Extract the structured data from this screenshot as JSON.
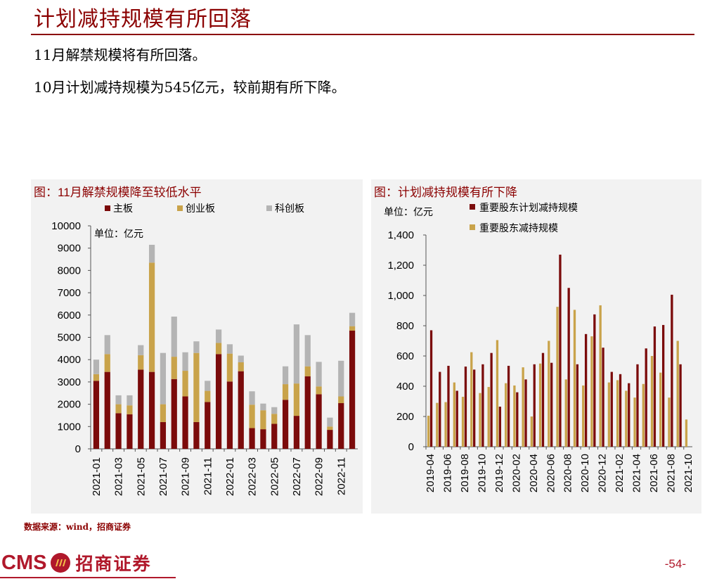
{
  "header": {
    "title": "计划减持规模有所回落",
    "bullets": [
      "11月解禁规模将有所回落。",
      "10月计划减持规模为545亿元，较前期有所下降。"
    ]
  },
  "colors": {
    "main": "#7b0b0b",
    "chinext": "#c9a34a",
    "star": "#b4b4b4",
    "brand": "#b0182b"
  },
  "left_chart": {
    "panel_title": "图：11月解禁规模降至较低水平"
  },
  "right_chart": {
    "panel_title": "图：计划减持规模有所下降"
  },
  "chart_data": [
    {
      "type": "bar",
      "stacked": true,
      "title": "图：11月解禁规模降至较低水平",
      "unit_label": "单位：亿元",
      "ylim": [
        0,
        10000
      ],
      "yticks": [
        "0",
        "1000",
        "2000",
        "3000",
        "4000",
        "5000",
        "6000",
        "7000",
        "8000",
        "9000",
        "10000"
      ],
      "categories": [
        "2021-01",
        "2021-02",
        "2021-03",
        "2021-04",
        "2021-05",
        "2021-06",
        "2021-07",
        "2021-08",
        "2021-09",
        "2021-10",
        "2021-11",
        "2021-12",
        "2022-01",
        "2022-02",
        "2022-03",
        "2022-04",
        "2022-05",
        "2022-06",
        "2022-07",
        "2022-08",
        "2022-09",
        "2022-10",
        "2022-11",
        "2022-12"
      ],
      "x_tick_labels": [
        "2021-01",
        "2021-03",
        "2021-05",
        "2021-07",
        "2021-09",
        "2021-11",
        "2022-01",
        "2022-03",
        "2022-05",
        "2022-07",
        "2022-09",
        "2022-11"
      ],
      "legend": [
        "主板",
        "创业板",
        "科创板"
      ],
      "series": [
        {
          "name": "主板",
          "values": [
            3050,
            3450,
            1600,
            1550,
            3550,
            3450,
            1200,
            3130,
            2350,
            1200,
            2100,
            4250,
            3020,
            3480,
            930,
            880,
            1120,
            2200,
            1480,
            3250,
            2450,
            850,
            2050,
            5300
          ]
        },
        {
          "name": "创业板",
          "values": [
            300,
            800,
            400,
            400,
            650,
            4900,
            800,
            1000,
            1150,
            3100,
            500,
            500,
            1250,
            400,
            1050,
            850,
            450,
            700,
            1450,
            450,
            350,
            150,
            300,
            200
          ]
        },
        {
          "name": "科创板",
          "values": [
            650,
            850,
            400,
            450,
            450,
            800,
            2300,
            1800,
            830,
            520,
            450,
            600,
            420,
            300,
            600,
            300,
            300,
            800,
            2650,
            1400,
            1100,
            400,
            1600,
            600
          ]
        }
      ]
    },
    {
      "type": "bar",
      "stacked": false,
      "title": "图：计划减持规模有所下降",
      "unit_label": "单位：亿元",
      "ylim": [
        0,
        1400
      ],
      "yticks": [
        "0",
        "200",
        "400",
        "600",
        "800",
        "1,000",
        "1,200",
        "1,400"
      ],
      "categories": [
        "2019-04",
        "2019-05",
        "2019-06",
        "2019-07",
        "2019-08",
        "2019-09",
        "2019-10",
        "2019-11",
        "2019-12",
        "2020-01",
        "2020-02",
        "2020-03",
        "2020-04",
        "2020-05",
        "2020-06",
        "2020-07",
        "2020-08",
        "2020-09",
        "2020-10",
        "2020-11",
        "2020-12",
        "2021-01",
        "2021-02",
        "2021-03",
        "2021-04",
        "2021-05",
        "2021-06",
        "2021-07",
        "2021-08",
        "2021-09",
        "2021-10"
      ],
      "x_tick_labels": [
        "2019-04",
        "2019-06",
        "2019-08",
        "2019-10",
        "2019-12",
        "2020-02",
        "2020-04",
        "2020-06",
        "2020-08",
        "2020-10",
        "2020-12",
        "2021-02",
        "2021-04",
        "2021-06",
        "2021-08",
        "2021-10"
      ],
      "legend": [
        "重要股东计划减持规模",
        "重要股东减持规模"
      ],
      "series": [
        {
          "name": "重要股东计划减持规模",
          "values": [
            770,
            495,
            535,
            370,
            530,
            510,
            545,
            620,
            265,
            535,
            360,
            445,
            545,
            620,
            555,
            1270,
            1050,
            545,
            745,
            875,
            655,
            495,
            480,
            420,
            545,
            650,
            795,
            805,
            1005,
            545,
            null
          ]
        },
        {
          "name": "重要股东减持规模",
          "values": [
            205,
            290,
            295,
            425,
            330,
            625,
            355,
            395,
            705,
            420,
            405,
            525,
            200,
            550,
            700,
            925,
            445,
            905,
            405,
            730,
            935,
            425,
            440,
            370,
            325,
            415,
            600,
            490,
            325,
            700,
            180
          ]
        }
      ]
    }
  ],
  "source": "数据来源：wind，招商证券",
  "footer": {
    "logo_text": "CMS",
    "logo_cn": "招商证券",
    "page": "-54-"
  }
}
